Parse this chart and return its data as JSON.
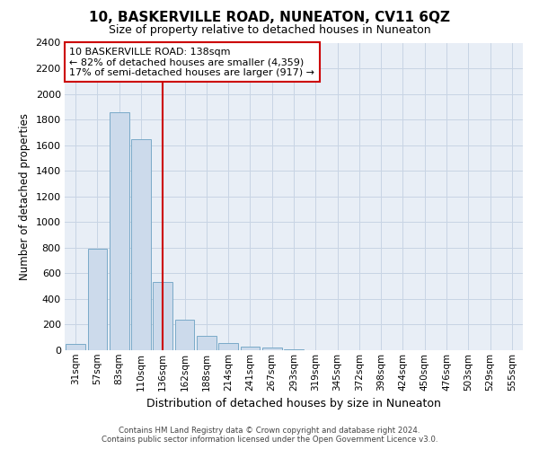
{
  "title": "10, BASKERVILLE ROAD, NUNEATON, CV11 6QZ",
  "subtitle": "Size of property relative to detached houses in Nuneaton",
  "xlabel": "Distribution of detached houses by size in Nuneaton",
  "ylabel": "Number of detached properties",
  "bar_color": "#ccdaeb",
  "bar_edge_color": "#7aaac8",
  "property_line_color": "#cc0000",
  "property_line_x": 4,
  "annotation_text": "10 BASKERVILLE ROAD: 138sqm\n← 82% of detached houses are smaller (4,359)\n17% of semi-detached houses are larger (917) →",
  "annotation_box_color": "#ffffff",
  "annotation_box_edge": "#cc0000",
  "categories": [
    "31sqm",
    "57sqm",
    "83sqm",
    "110sqm",
    "136sqm",
    "162sqm",
    "188sqm",
    "214sqm",
    "241sqm",
    "267sqm",
    "293sqm",
    "319sqm",
    "345sqm",
    "372sqm",
    "398sqm",
    "424sqm",
    "450sqm",
    "476sqm",
    "503sqm",
    "529sqm",
    "555sqm"
  ],
  "values": [
    50,
    790,
    1860,
    1650,
    530,
    240,
    110,
    55,
    30,
    20,
    10,
    0,
    0,
    0,
    0,
    0,
    0,
    0,
    0,
    0,
    0
  ],
  "ylim": [
    0,
    2400
  ],
  "yticks": [
    0,
    200,
    400,
    600,
    800,
    1000,
    1200,
    1400,
    1600,
    1800,
    2000,
    2200,
    2400
  ],
  "grid_color": "#c8d4e4",
  "background_color": "#e8eef6",
  "footer_line1": "Contains HM Land Registry data © Crown copyright and database right 2024.",
  "footer_line2": "Contains public sector information licensed under the Open Government Licence v3.0."
}
